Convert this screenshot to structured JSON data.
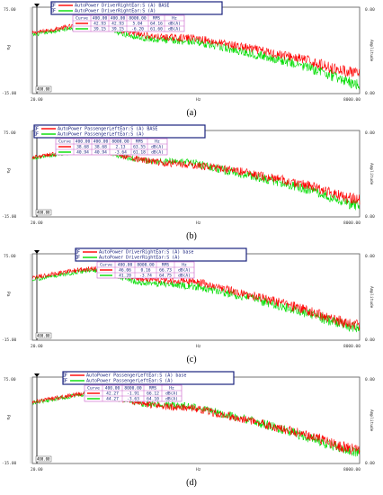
{
  "chart_data": [
    {
      "type": "line",
      "label": "(a)",
      "legend": [
        {
          "name": "AutoPower DriverRightEar:S (A) BASE",
          "color": "#ff0000",
          "prefix": "F"
        },
        {
          "name": "AutoPower DriverRightEar:S (A)",
          "color": "#00dd00",
          "prefix": "F"
        }
      ],
      "table": {
        "header": [
          "Curve",
          "400.00",
          "400.00",
          "8000.00",
          "RMS",
          "Hz"
        ],
        "rows": [
          [
            "",
            "42.93",
            "42.93",
            "5.04",
            "64.16",
            "dB(A)"
          ],
          [
            "",
            "39.15",
            "39.15",
            "-6.20",
            "61.60",
            "dB(A)"
          ]
        ]
      },
      "y_top_label": "75.00",
      "y_bottom_label": "-15.00",
      "y_axis_label": "Pa",
      "y_right_top": "0.00",
      "y_right_bottom": "0.00",
      "y_right_label": "Amplitude",
      "x_left_label": "20.00",
      "x_center_label": "Hz",
      "x_right_label": "8000.00",
      "cursor_label": "400.00",
      "ylim": [
        -15,
        75
      ],
      "series": [
        {
          "name": "AutoPower DriverRightEar:S (A) BASE",
          "values": [
            [
              20,
              48
            ],
            [
              40,
              55
            ],
            [
              60,
              58
            ],
            [
              80,
              55
            ],
            [
              100,
              50
            ],
            [
              150,
              46
            ],
            [
              200,
              44
            ],
            [
              300,
              43
            ],
            [
              400,
              42.9
            ],
            [
              600,
              38
            ],
            [
              1000,
              33
            ],
            [
              1500,
              28
            ],
            [
              2000,
              25
            ],
            [
              3000,
              20
            ],
            [
              4000,
              15
            ],
            [
              5000,
              11
            ],
            [
              6000,
              9
            ],
            [
              7000,
              7
            ],
            [
              8000,
              5.0
            ]
          ]
        },
        {
          "name": "AutoPower DriverRightEar:S (A)",
          "values": [
            [
              20,
              46
            ],
            [
              40,
              53
            ],
            [
              60,
              56
            ],
            [
              80,
              52
            ],
            [
              100,
              48
            ],
            [
              150,
              43
            ],
            [
              200,
              41
            ],
            [
              300,
              40
            ],
            [
              400,
              39.2
            ],
            [
              600,
              34
            ],
            [
              1000,
              28
            ],
            [
              1500,
              23
            ],
            [
              2000,
              19
            ],
            [
              3000,
              13
            ],
            [
              4000,
              8
            ],
            [
              5000,
              3
            ],
            [
              6000,
              -1
            ],
            [
              7000,
              -4
            ],
            [
              8000,
              -6.2
            ]
          ]
        }
      ]
    },
    {
      "type": "line",
      "label": "(b)",
      "legend": [
        {
          "name": "AutoPower PassengerLeftEar:S (A) BASE",
          "color": "#ff0000",
          "prefix": "F"
        },
        {
          "name": "AutoPower PassengerLeftEar:S (A)",
          "color": "#00dd00",
          "prefix": "F"
        }
      ],
      "table": {
        "header": [
          "Curve",
          "400.00",
          "400.00",
          "8000.00",
          "RMS",
          "Hz"
        ],
        "rows": [
          [
            "",
            "38.68",
            "38.68",
            "2.13",
            "63.55",
            "dB(A)"
          ],
          [
            "",
            "40.94",
            "40.94",
            "-3.64",
            "61.18",
            "dB(A)"
          ]
        ]
      },
      "y_top_label": "75.00",
      "y_bottom_label": "-15.00",
      "y_axis_label": "Pa",
      "y_right_top": "0.00",
      "y_right_bottom": "0.00",
      "y_right_label": "Amplitude",
      "x_left_label": "20.00",
      "x_center_label": "Hz",
      "x_right_label": "8000.00",
      "cursor_label": "400.00",
      "ylim": [
        -15,
        75
      ],
      "series": [
        {
          "name": "AutoPower PassengerLeftEar:S (A) BASE",
          "values": [
            [
              20,
              47
            ],
            [
              40,
              53
            ],
            [
              60,
              57
            ],
            [
              80,
              53
            ],
            [
              100,
              49
            ],
            [
              150,
              44
            ],
            [
              200,
              42
            ],
            [
              300,
              40
            ],
            [
              400,
              38.7
            ],
            [
              600,
              36
            ],
            [
              1000,
              31
            ],
            [
              1500,
              26
            ],
            [
              2000,
              23
            ],
            [
              3000,
              18
            ],
            [
              4000,
              13
            ],
            [
              5000,
              9
            ],
            [
              6000,
              6
            ],
            [
              7000,
              4
            ],
            [
              8000,
              2.1
            ]
          ]
        },
        {
          "name": "AutoPower PassengerLeftEar:S (A)",
          "values": [
            [
              20,
              46
            ],
            [
              40,
              52
            ],
            [
              60,
              56
            ],
            [
              80,
              52
            ],
            [
              100,
              48
            ],
            [
              150,
              44
            ],
            [
              200,
              43
            ],
            [
              300,
              42
            ],
            [
              400,
              40.9
            ],
            [
              600,
              35
            ],
            [
              1000,
              29
            ],
            [
              1500,
              24
            ],
            [
              2000,
              20
            ],
            [
              3000,
              14
            ],
            [
              4000,
              9
            ],
            [
              5000,
              5
            ],
            [
              6000,
              1
            ],
            [
              7000,
              -2
            ],
            [
              8000,
              -3.6
            ]
          ]
        }
      ]
    },
    {
      "type": "line",
      "label": "(c)",
      "legend": [
        {
          "name": "AutoPower DriverRightEar:S (A) base",
          "color": "#ff0000",
          "prefix": "F"
        },
        {
          "name": "AutoPower DriverRightEar:S (A)",
          "color": "#00dd00",
          "prefix": "F"
        }
      ],
      "table": {
        "header": [
          "Curve",
          "400.00",
          "8000.00",
          "RMS",
          "Hz"
        ],
        "rows": [
          [
            "",
            "46.06",
            "0.16",
            "66.73",
            "dB(A)"
          ],
          [
            "",
            "41.20",
            "-3.74",
            "64.75",
            "dB(A)"
          ]
        ]
      },
      "y_top_label": "75.00",
      "y_bottom_label": "-15.00",
      "y_axis_label": "Pa",
      "y_right_top": "0.00",
      "y_right_bottom": "0.00",
      "y_right_label": "Amplitude",
      "x_left_label": "20.00",
      "x_center_label": "Hz",
      "x_right_label": "8000.00",
      "cursor_label": "400.00",
      "ylim": [
        -15,
        75
      ],
      "series": [
        {
          "name": "AutoPower DriverRightEar:S (A) base",
          "values": [
            [
              20,
              50
            ],
            [
              40,
              57
            ],
            [
              60,
              60
            ],
            [
              80,
              57
            ],
            [
              100,
              53
            ],
            [
              150,
              49
            ],
            [
              200,
              48
            ],
            [
              300,
              47
            ],
            [
              400,
              46.1
            ],
            [
              600,
              40
            ],
            [
              1000,
              33
            ],
            [
              1500,
              27
            ],
            [
              2000,
              23
            ],
            [
              3000,
              16
            ],
            [
              4000,
              11
            ],
            [
              5000,
              7
            ],
            [
              6000,
              4
            ],
            [
              7000,
              2
            ],
            [
              8000,
              0.2
            ]
          ]
        },
        {
          "name": "AutoPower DriverRightEar:S (A)",
          "values": [
            [
              20,
              48
            ],
            [
              40,
              55
            ],
            [
              60,
              58
            ],
            [
              80,
              55
            ],
            [
              100,
              50
            ],
            [
              150,
              45
            ],
            [
              200,
              44
            ],
            [
              300,
              42
            ],
            [
              400,
              41.2
            ],
            [
              600,
              36
            ],
            [
              1000,
              30
            ],
            [
              1500,
              24
            ],
            [
              2000,
              20
            ],
            [
              3000,
              13
            ],
            [
              4000,
              8
            ],
            [
              5000,
              4
            ],
            [
              6000,
              1
            ],
            [
              7000,
              -2
            ],
            [
              8000,
              -3.7
            ]
          ]
        }
      ]
    },
    {
      "type": "line",
      "label": "(d)",
      "legend": [
        {
          "name": "AutoPower PassengerLeftEar:S (A) base",
          "color": "#ff0000",
          "prefix": "F"
        },
        {
          "name": "AutoPower PassengerLeftEar:S (A)",
          "color": "#00dd00",
          "prefix": "F"
        }
      ],
      "table": {
        "header": [
          "Curve",
          "400.00",
          "8000.00",
          "RMS",
          "Hz"
        ],
        "rows": [
          [
            "",
            "42.27",
            "-1.91",
            "66.12",
            "dB(A)"
          ],
          [
            "",
            "44.27",
            "-3.63",
            "64.10",
            "dB(A)"
          ]
        ]
      },
      "y_top_label": "75.00",
      "y_bottom_label": "-15.00",
      "y_axis_label": "Pa",
      "y_right_top": "0.00",
      "y_right_bottom": "0.00",
      "y_right_label": "Amplitude",
      "x_left_label": "20.00",
      "x_center_label": "Hz",
      "x_right_label": "8000.00",
      "cursor_label": "400.00",
      "ylim": [
        -15,
        75
      ],
      "series": [
        {
          "name": "AutoPower PassengerLeftEar:S (A) base",
          "values": [
            [
              20,
              49
            ],
            [
              40,
              56
            ],
            [
              60,
              59
            ],
            [
              80,
              56
            ],
            [
              100,
              52
            ],
            [
              150,
              47
            ],
            [
              200,
              45
            ],
            [
              300,
              43
            ],
            [
              400,
              42.3
            ],
            [
              600,
              37
            ],
            [
              1000,
              31
            ],
            [
              1500,
              25
            ],
            [
              2000,
              21
            ],
            [
              3000,
              15
            ],
            [
              4000,
              10
            ],
            [
              5000,
              5
            ],
            [
              6000,
              2
            ],
            [
              7000,
              0
            ],
            [
              8000,
              -1.9
            ]
          ]
        },
        {
          "name": "AutoPower PassengerLeftEar:S (A)",
          "values": [
            [
              20,
              48
            ],
            [
              40,
              55
            ],
            [
              60,
              58
            ],
            [
              80,
              55
            ],
            [
              100,
              51
            ],
            [
              150,
              47
            ],
            [
              200,
              46
            ],
            [
              300,
              45
            ],
            [
              400,
              44.3
            ],
            [
              600,
              38
            ],
            [
              1000,
              31
            ],
            [
              1500,
              25
            ],
            [
              2000,
              20
            ],
            [
              3000,
              13
            ],
            [
              4000,
              8
            ],
            [
              5000,
              3
            ],
            [
              6000,
              0
            ],
            [
              7000,
              -2
            ],
            [
              8000,
              -3.6
            ]
          ]
        }
      ]
    }
  ]
}
